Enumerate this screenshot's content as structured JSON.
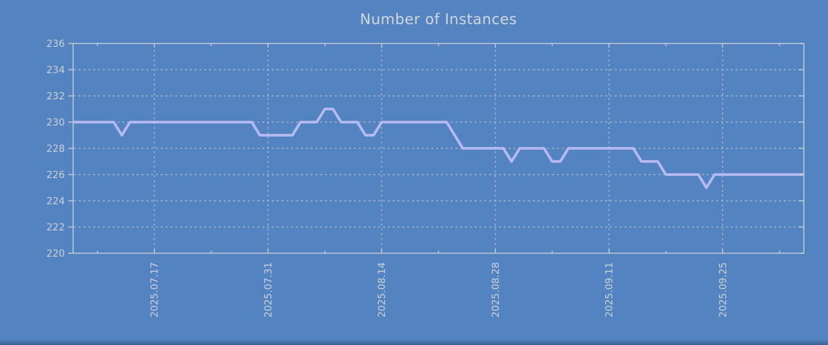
{
  "chart_data": {
    "type": "line",
    "title": "Number of Instances",
    "xlabel": "",
    "ylabel": "",
    "ylim": [
      220,
      236
    ],
    "y_ticks": [
      220,
      222,
      224,
      226,
      228,
      230,
      232,
      234,
      236
    ],
    "x_ticks_major": [
      "2025.07.17",
      "2025.07.31",
      "2025.08.14",
      "2025.08.28",
      "2025.09.11",
      "2025.09.25"
    ],
    "x_ticks_minor": [
      "2025.07.10",
      "2025.07.24",
      "2025.08.07",
      "2025.08.21",
      "2025.09.04",
      "2025.09.18",
      "2025.10.02"
    ],
    "x_range": [
      "2025.07.07",
      "2025.10.05"
    ],
    "grid": true,
    "legend_position": "none",
    "series": [
      {
        "name": "instances",
        "dates": [
          "2025.07.07",
          "2025.07.08",
          "2025.07.09",
          "2025.07.10",
          "2025.07.11",
          "2025.07.12",
          "2025.07.13",
          "2025.07.14",
          "2025.07.15",
          "2025.07.16",
          "2025.07.17",
          "2025.07.18",
          "2025.07.19",
          "2025.07.20",
          "2025.07.21",
          "2025.07.22",
          "2025.07.23",
          "2025.07.24",
          "2025.07.25",
          "2025.07.26",
          "2025.07.27",
          "2025.07.28",
          "2025.07.29",
          "2025.07.30",
          "2025.07.31",
          "2025.08.01",
          "2025.08.02",
          "2025.08.03",
          "2025.08.04",
          "2025.08.05",
          "2025.08.06",
          "2025.08.07",
          "2025.08.08",
          "2025.08.09",
          "2025.08.10",
          "2025.08.11",
          "2025.08.12",
          "2025.08.13",
          "2025.08.14",
          "2025.08.15",
          "2025.08.16",
          "2025.08.17",
          "2025.08.18",
          "2025.08.19",
          "2025.08.20",
          "2025.08.21",
          "2025.08.22",
          "2025.08.23",
          "2025.08.24",
          "2025.08.25",
          "2025.08.26",
          "2025.08.27",
          "2025.08.28",
          "2025.08.29",
          "2025.08.30",
          "2025.08.31",
          "2025.09.01",
          "2025.09.02",
          "2025.09.03",
          "2025.09.04",
          "2025.09.05",
          "2025.09.06",
          "2025.09.07",
          "2025.09.08",
          "2025.09.09",
          "2025.09.10",
          "2025.09.11",
          "2025.09.12",
          "2025.09.13",
          "2025.09.14",
          "2025.09.15",
          "2025.09.16",
          "2025.09.17",
          "2025.09.18",
          "2025.09.19",
          "2025.09.20",
          "2025.09.21",
          "2025.09.22",
          "2025.09.23",
          "2025.09.24",
          "2025.09.25",
          "2025.09.26",
          "2025.09.27",
          "2025.09.28",
          "2025.09.29",
          "2025.09.30",
          "2025.10.01",
          "2025.10.02",
          "2025.10.03",
          "2025.10.04",
          "2025.10.05"
        ],
        "values": [
          230,
          230,
          230,
          230,
          230,
          230,
          229,
          230,
          230,
          230,
          230,
          230,
          230,
          230,
          230,
          230,
          230,
          230,
          230,
          230,
          230,
          230,
          230,
          229,
          229,
          229,
          229,
          229,
          230,
          230,
          230,
          231,
          231,
          230,
          230,
          230,
          229,
          229,
          230,
          230,
          230,
          230,
          230,
          230,
          230,
          230,
          230,
          229,
          228,
          228,
          228,
          228,
          228,
          228,
          227,
          228,
          228,
          228,
          228,
          227,
          227,
          228,
          228,
          228,
          228,
          228,
          228,
          228,
          228,
          228,
          227,
          227,
          227,
          226,
          226,
          226,
          226,
          226,
          225,
          226,
          226,
          226,
          226,
          226,
          226,
          226,
          226,
          226,
          226,
          226,
          226
        ]
      }
    ],
    "colors": {
      "background": "#5483c1",
      "line": "#b6baf1",
      "frame": "#c8cfd4",
      "grid": "#bcc4ca",
      "tick_text": "#ccd1d5",
      "title_text": "#d3d7d9",
      "bottom_edge": "#41699e"
    }
  }
}
